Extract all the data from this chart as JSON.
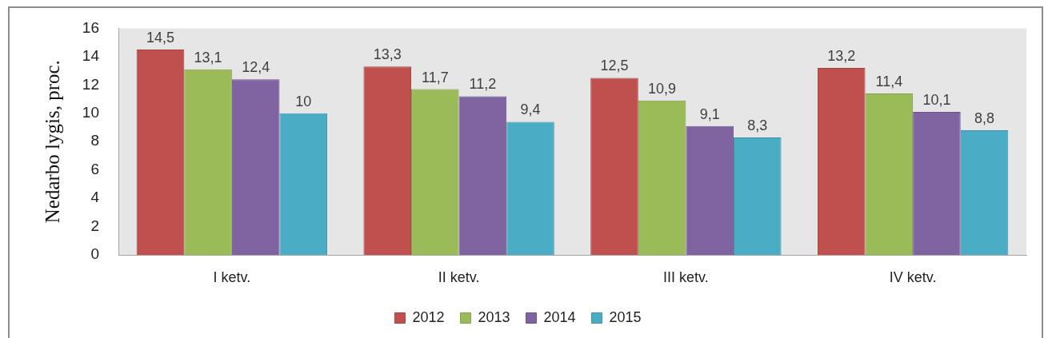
{
  "chart_data": {
    "type": "bar",
    "ylabel": "Nedarbo lygis, proc.",
    "categories": [
      "I ketv.",
      "II ketv.",
      "III ketv.",
      "IV ketv."
    ],
    "series": [
      {
        "name": "2012",
        "color": "#c0504d",
        "values": [
          14.5,
          13.3,
          12.5,
          13.2
        ],
        "value_labels": [
          "14,5",
          "13,3",
          "12,5",
          "13,2"
        ]
      },
      {
        "name": "2013",
        "color": "#9bbb59",
        "values": [
          13.1,
          11.7,
          10.9,
          11.4
        ],
        "value_labels": [
          "13,1",
          "11,7",
          "10,9",
          "11,4"
        ]
      },
      {
        "name": "2014",
        "color": "#8064a2",
        "values": [
          12.4,
          11.2,
          9.1,
          10.1
        ],
        "value_labels": [
          "12,4",
          "11,2",
          "9,1",
          "10,1"
        ]
      },
      {
        "name": "2015",
        "color": "#4bacc6",
        "values": [
          10,
          9.4,
          8.3,
          8.8
        ],
        "value_labels": [
          "10",
          "9,4",
          "8,3",
          "8,8"
        ]
      }
    ],
    "ylim": [
      0,
      16
    ],
    "yticks": [
      0,
      2,
      4,
      6,
      8,
      10,
      12,
      14,
      16
    ],
    "grid": false,
    "legend": "bottom"
  }
}
